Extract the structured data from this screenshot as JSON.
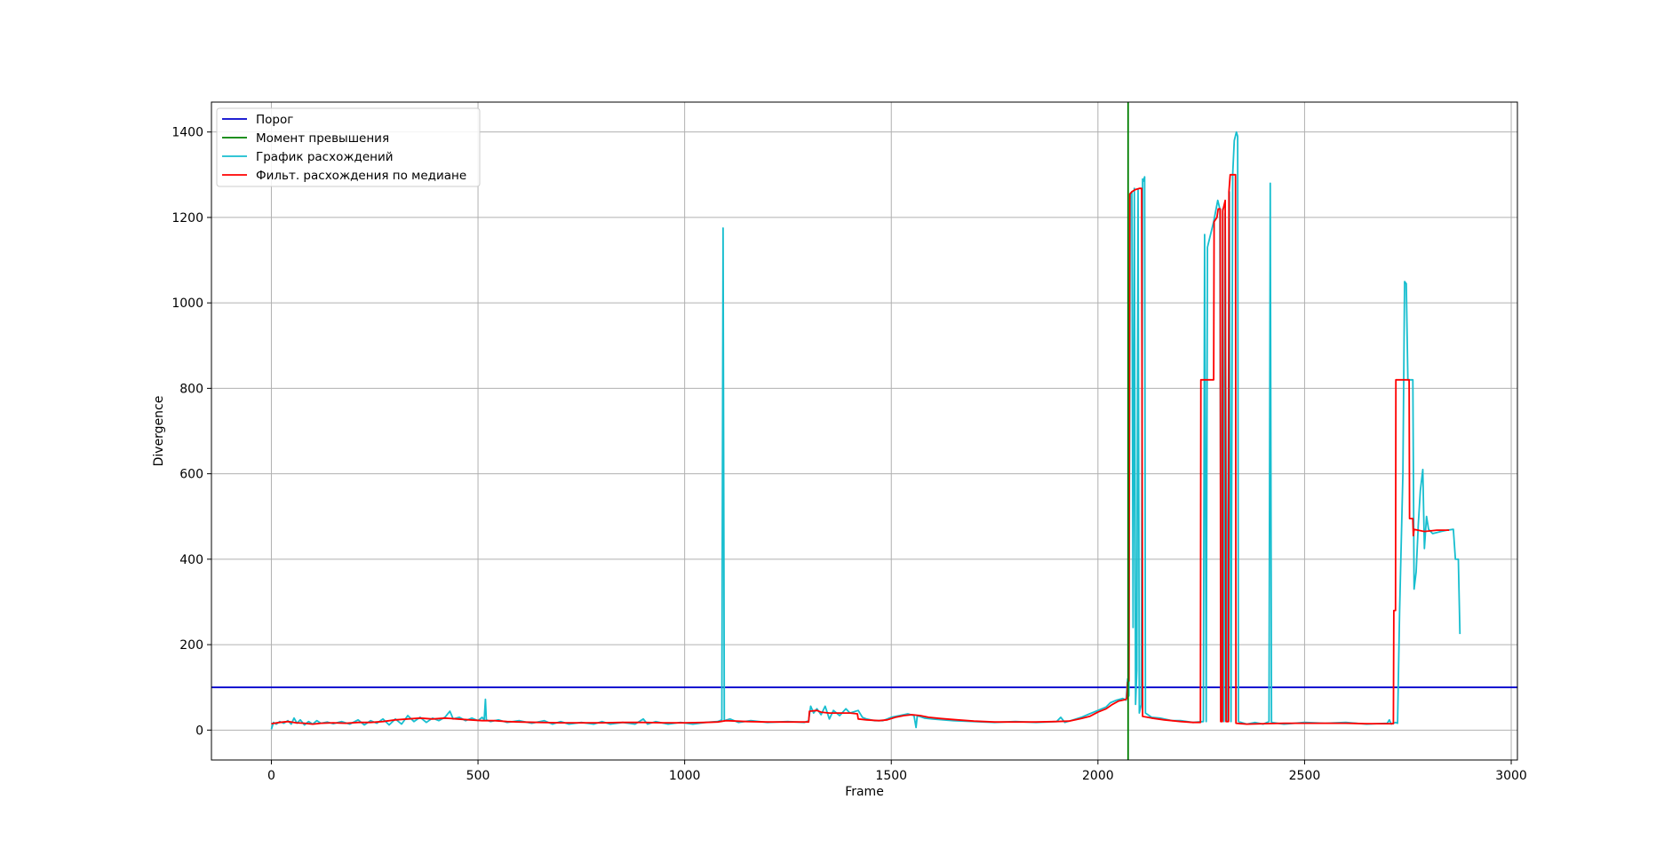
{
  "chart_data": {
    "type": "line",
    "title": "",
    "xlabel": "Frame",
    "ylabel": "Divergence",
    "xlim": [
      -145,
      3015
    ],
    "ylim": [
      -70,
      1470
    ],
    "xticks": [
      0,
      500,
      1000,
      1500,
      2000,
      2500,
      3000
    ],
    "yticks": [
      0,
      200,
      400,
      600,
      800,
      1000,
      1200,
      1400
    ],
    "grid": true,
    "legend_position": "top-left",
    "threshold": {
      "name": "Порог",
      "value": 100,
      "color": "#0000cc"
    },
    "exceed_moment": {
      "name": "Момент превышения",
      "frame": 2073,
      "color": "#007f00"
    },
    "series": [
      {
        "name": "График расхождений",
        "color": "#17becf",
        "points": [
          [
            0,
            2
          ],
          [
            5,
            18
          ],
          [
            12,
            14
          ],
          [
            20,
            20
          ],
          [
            30,
            16
          ],
          [
            40,
            22
          ],
          [
            48,
            14
          ],
          [
            55,
            28
          ],
          [
            62,
            16
          ],
          [
            70,
            24
          ],
          [
            80,
            12
          ],
          [
            90,
            20
          ],
          [
            100,
            14
          ],
          [
            110,
            22
          ],
          [
            120,
            16
          ],
          [
            135,
            19
          ],
          [
            150,
            15
          ],
          [
            170,
            20
          ],
          [
            190,
            14
          ],
          [
            210,
            24
          ],
          [
            225,
            12
          ],
          [
            240,
            22
          ],
          [
            255,
            16
          ],
          [
            270,
            26
          ],
          [
            285,
            12
          ],
          [
            300,
            26
          ],
          [
            315,
            14
          ],
          [
            330,
            34
          ],
          [
            345,
            20
          ],
          [
            360,
            30
          ],
          [
            375,
            18
          ],
          [
            390,
            28
          ],
          [
            405,
            22
          ],
          [
            420,
            30
          ],
          [
            432,
            44
          ],
          [
            440,
            26
          ],
          [
            455,
            30
          ],
          [
            470,
            22
          ],
          [
            485,
            28
          ],
          [
            500,
            22
          ],
          [
            510,
            30
          ],
          [
            515,
            24
          ],
          [
            518,
            72
          ],
          [
            520,
            24
          ],
          [
            530,
            20
          ],
          [
            550,
            24
          ],
          [
            570,
            18
          ],
          [
            600,
            22
          ],
          [
            630,
            16
          ],
          [
            660,
            22
          ],
          [
            680,
            14
          ],
          [
            700,
            20
          ],
          [
            720,
            14
          ],
          [
            750,
            18
          ],
          [
            780,
            14
          ],
          [
            800,
            20
          ],
          [
            820,
            14
          ],
          [
            850,
            18
          ],
          [
            880,
            14
          ],
          [
            900,
            26
          ],
          [
            910,
            14
          ],
          [
            930,
            20
          ],
          [
            960,
            14
          ],
          [
            990,
            18
          ],
          [
            1020,
            14
          ],
          [
            1050,
            18
          ],
          [
            1080,
            20
          ],
          [
            1090,
            24
          ],
          [
            1093,
            1175
          ],
          [
            1096,
            22
          ],
          [
            1110,
            26
          ],
          [
            1130,
            18
          ],
          [
            1160,
            22
          ],
          [
            1200,
            18
          ],
          [
            1250,
            20
          ],
          [
            1290,
            18
          ],
          [
            1300,
            22
          ],
          [
            1305,
            56
          ],
          [
            1312,
            40
          ],
          [
            1320,
            50
          ],
          [
            1330,
            36
          ],
          [
            1340,
            56
          ],
          [
            1350,
            26
          ],
          [
            1360,
            46
          ],
          [
            1375,
            34
          ],
          [
            1390,
            50
          ],
          [
            1400,
            40
          ],
          [
            1420,
            46
          ],
          [
            1430,
            30
          ],
          [
            1440,
            26
          ],
          [
            1460,
            22
          ],
          [
            1480,
            22
          ],
          [
            1500,
            30
          ],
          [
            1520,
            34
          ],
          [
            1540,
            38
          ],
          [
            1555,
            34
          ],
          [
            1560,
            6
          ],
          [
            1563,
            34
          ],
          [
            1580,
            28
          ],
          [
            1600,
            26
          ],
          [
            1650,
            22
          ],
          [
            1700,
            20
          ],
          [
            1750,
            18
          ],
          [
            1800,
            20
          ],
          [
            1850,
            18
          ],
          [
            1900,
            20
          ],
          [
            1910,
            30
          ],
          [
            1920,
            18
          ],
          [
            1940,
            24
          ],
          [
            1960,
            30
          ],
          [
            1980,
            38
          ],
          [
            2000,
            46
          ],
          [
            2020,
            54
          ],
          [
            2030,
            64
          ],
          [
            2045,
            70
          ],
          [
            2060,
            74
          ],
          [
            2068,
            70
          ],
          [
            2072,
            120
          ],
          [
            2075,
            80
          ],
          [
            2078,
            1255
          ],
          [
            2082,
            1260
          ],
          [
            2085,
            240
          ],
          [
            2088,
            1268
          ],
          [
            2091,
            60
          ],
          [
            2094,
            140
          ],
          [
            2097,
            1265
          ],
          [
            2100,
            40
          ],
          [
            2105,
            60
          ],
          [
            2108,
            1290
          ],
          [
            2110,
            1285
          ],
          [
            2113,
            1295
          ],
          [
            2115,
            40
          ],
          [
            2130,
            30
          ],
          [
            2150,
            28
          ],
          [
            2180,
            22
          ],
          [
            2200,
            22
          ],
          [
            2230,
            18
          ],
          [
            2255,
            20
          ],
          [
            2258,
            1160
          ],
          [
            2262,
            20
          ],
          [
            2265,
            1130
          ],
          [
            2270,
            1150
          ],
          [
            2280,
            1190
          ],
          [
            2290,
            1240
          ],
          [
            2295,
            1220
          ],
          [
            2298,
            20
          ],
          [
            2302,
            1220
          ],
          [
            2305,
            20
          ],
          [
            2308,
            1210
          ],
          [
            2312,
            20
          ],
          [
            2318,
            1260
          ],
          [
            2322,
            20
          ],
          [
            2326,
            1300
          ],
          [
            2330,
            1380
          ],
          [
            2335,
            1400
          ],
          [
            2338,
            1390
          ],
          [
            2340,
            20
          ],
          [
            2360,
            14
          ],
          [
            2380,
            18
          ],
          [
            2400,
            14
          ],
          [
            2414,
            20
          ],
          [
            2417,
            1280
          ],
          [
            2420,
            18
          ],
          [
            2450,
            14
          ],
          [
            2500,
            18
          ],
          [
            2550,
            16
          ],
          [
            2600,
            18
          ],
          [
            2650,
            14
          ],
          [
            2700,
            16
          ],
          [
            2705,
            24
          ],
          [
            2710,
            14
          ],
          [
            2720,
            18
          ],
          [
            2725,
            16
          ],
          [
            2730,
            280
          ],
          [
            2738,
            600
          ],
          [
            2742,
            1050
          ],
          [
            2746,
            1045
          ],
          [
            2750,
            820
          ],
          [
            2762,
            820
          ],
          [
            2765,
            330
          ],
          [
            2770,
            370
          ],
          [
            2775,
            480
          ],
          [
            2780,
            560
          ],
          [
            2786,
            610
          ],
          [
            2790,
            425
          ],
          [
            2795,
            500
          ],
          [
            2800,
            470
          ],
          [
            2810,
            460
          ],
          [
            2830,
            465
          ],
          [
            2845,
            468
          ],
          [
            2860,
            470
          ],
          [
            2865,
            400
          ],
          [
            2872,
            400
          ],
          [
            2876,
            225
          ]
        ]
      },
      {
        "name": "Фильт. расхождения по медиане",
        "color": "#ff0000",
        "points": [
          [
            0,
            15
          ],
          [
            20,
            18
          ],
          [
            40,
            20
          ],
          [
            60,
            17
          ],
          [
            80,
            16
          ],
          [
            100,
            14
          ],
          [
            120,
            16
          ],
          [
            150,
            17
          ],
          [
            180,
            16
          ],
          [
            210,
            18
          ],
          [
            240,
            18
          ],
          [
            270,
            20
          ],
          [
            300,
            24
          ],
          [
            330,
            26
          ],
          [
            360,
            28
          ],
          [
            390,
            26
          ],
          [
            420,
            28
          ],
          [
            450,
            26
          ],
          [
            480,
            24
          ],
          [
            510,
            22
          ],
          [
            540,
            22
          ],
          [
            570,
            20
          ],
          [
            600,
            19
          ],
          [
            650,
            18
          ],
          [
            700,
            17
          ],
          [
            750,
            17
          ],
          [
            800,
            17
          ],
          [
            850,
            18
          ],
          [
            900,
            18
          ],
          [
            950,
            17
          ],
          [
            1000,
            17
          ],
          [
            1050,
            18
          ],
          [
            1080,
            19
          ],
          [
            1100,
            22
          ],
          [
            1150,
            20
          ],
          [
            1200,
            19
          ],
          [
            1250,
            19
          ],
          [
            1295,
            19
          ],
          [
            1300,
            19
          ],
          [
            1302,
            44
          ],
          [
            1320,
            46
          ],
          [
            1330,
            42
          ],
          [
            1350,
            40
          ],
          [
            1380,
            40
          ],
          [
            1400,
            40
          ],
          [
            1418,
            38
          ],
          [
            1420,
            26
          ],
          [
            1440,
            24
          ],
          [
            1470,
            22
          ],
          [
            1490,
            24
          ],
          [
            1510,
            30
          ],
          [
            1530,
            34
          ],
          [
            1550,
            36
          ],
          [
            1570,
            34
          ],
          [
            1590,
            30
          ],
          [
            1620,
            27
          ],
          [
            1660,
            24
          ],
          [
            1700,
            21
          ],
          [
            1750,
            19
          ],
          [
            1800,
            19
          ],
          [
            1850,
            19
          ],
          [
            1900,
            20
          ],
          [
            1930,
            21
          ],
          [
            1960,
            27
          ],
          [
            1980,
            32
          ],
          [
            2000,
            42
          ],
          [
            2020,
            50
          ],
          [
            2035,
            60
          ],
          [
            2050,
            68
          ],
          [
            2068,
            72
          ],
          [
            2070,
            76
          ],
          [
            2072,
            112
          ],
          [
            2075,
            115
          ],
          [
            2077,
            1255
          ],
          [
            2082,
            1260
          ],
          [
            2090,
            1265
          ],
          [
            2100,
            1268
          ],
          [
            2106,
            1268
          ],
          [
            2108,
            32
          ],
          [
            2130,
            28
          ],
          [
            2160,
            24
          ],
          [
            2200,
            20
          ],
          [
            2230,
            18
          ],
          [
            2248,
            18
          ],
          [
            2249,
            820
          ],
          [
            2280,
            820
          ],
          [
            2281,
            1190
          ],
          [
            2288,
            1200
          ],
          [
            2291,
            1220
          ],
          [
            2296,
            1220
          ],
          [
            2297,
            20
          ],
          [
            2301,
            20
          ],
          [
            2302,
            1215
          ],
          [
            2308,
            1240
          ],
          [
            2310,
            20
          ],
          [
            2316,
            20
          ],
          [
            2317,
            1260
          ],
          [
            2320,
            1300
          ],
          [
            2333,
            1300
          ],
          [
            2334,
            16
          ],
          [
            2360,
            14
          ],
          [
            2400,
            15
          ],
          [
            2450,
            16
          ],
          [
            2500,
            16
          ],
          [
            2550,
            16
          ],
          [
            2600,
            16
          ],
          [
            2650,
            15
          ],
          [
            2700,
            15
          ],
          [
            2715,
            15
          ],
          [
            2716,
            280
          ],
          [
            2720,
            280
          ],
          [
            2721,
            820
          ],
          [
            2753,
            820
          ],
          [
            2754,
            495
          ],
          [
            2762,
            495
          ],
          [
            2763,
            455
          ],
          [
            2765,
            470
          ],
          [
            2790,
            465
          ],
          [
            2820,
            468
          ],
          [
            2850,
            468
          ]
        ]
      }
    ]
  }
}
